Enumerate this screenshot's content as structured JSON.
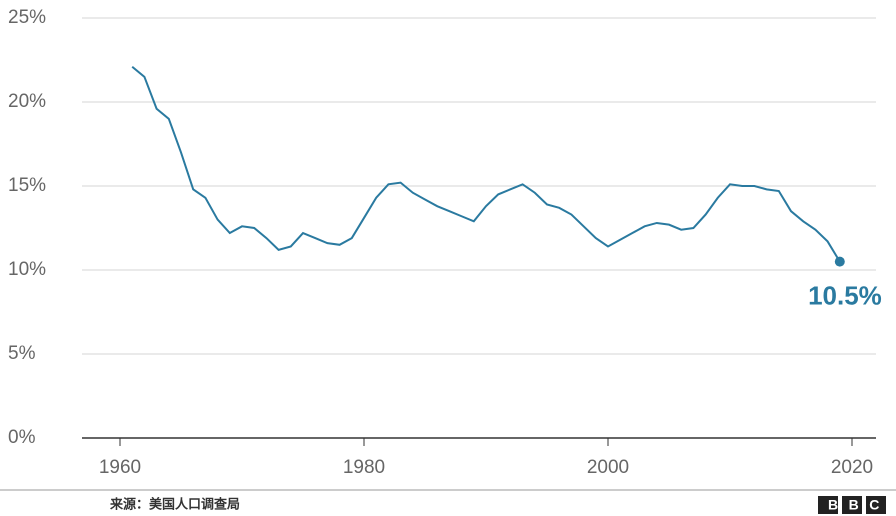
{
  "chart_data": {
    "type": "line",
    "x": [
      1961,
      1962,
      1963,
      1964,
      1965,
      1966,
      1967,
      1968,
      1969,
      1970,
      1971,
      1972,
      1973,
      1974,
      1975,
      1976,
      1977,
      1978,
      1979,
      1980,
      1981,
      1982,
      1983,
      1984,
      1985,
      1986,
      1987,
      1988,
      1989,
      1990,
      1991,
      1992,
      1993,
      1994,
      1995,
      1996,
      1997,
      1998,
      1999,
      2000,
      2001,
      2002,
      2003,
      2004,
      2005,
      2006,
      2007,
      2008,
      2009,
      2010,
      2011,
      2012,
      2013,
      2014,
      2015,
      2016,
      2017,
      2018,
      2019
    ],
    "series": [
      {
        "color": "#2a7aa0",
        "values": [
          22.1,
          21.5,
          19.6,
          19.0,
          17.0,
          14.8,
          14.3,
          13.0,
          12.2,
          12.6,
          12.5,
          11.9,
          11.2,
          11.4,
          12.2,
          11.9,
          11.6,
          11.5,
          11.9,
          13.1,
          14.3,
          15.1,
          15.2,
          14.6,
          14.2,
          13.8,
          13.5,
          13.2,
          12.9,
          13.8,
          14.5,
          14.8,
          15.1,
          14.6,
          13.9,
          13.7,
          13.3,
          12.6,
          11.9,
          11.4,
          11.8,
          12.2,
          12.6,
          12.8,
          12.7,
          12.4,
          12.5,
          13.3,
          14.3,
          15.1,
          15.0,
          15.0,
          14.8,
          14.7,
          13.5,
          12.9,
          12.4,
          11.7,
          10.5
        ],
        "value_labels": [
          null,
          null,
          null,
          null,
          null,
          null,
          null,
          null,
          null,
          null,
          null,
          null,
          null,
          null,
          null,
          null,
          null,
          null,
          null,
          null,
          null,
          null,
          null,
          null,
          null,
          null,
          null,
          null,
          null,
          null,
          null,
          null,
          null,
          null,
          null,
          null,
          null,
          null,
          null,
          null,
          null,
          null,
          null,
          null,
          null,
          null,
          null,
          null,
          null,
          null,
          null,
          null,
          null,
          null,
          null,
          null,
          null,
          null,
          "10.5%"
        ]
      }
    ],
    "xlim": [
      1960,
      2020
    ],
    "xticks": [
      1960,
      1980,
      2000,
      2020
    ],
    "ylim": [
      0,
      25
    ],
    "yticks": [
      {
        "value": 0,
        "label": "0%"
      },
      {
        "value": 5,
        "label": "5%"
      },
      {
        "value": 10,
        "label": "10%"
      },
      {
        "value": 15,
        "label": "15%"
      },
      {
        "value": 20,
        "label": "20%"
      },
      {
        "value": 25,
        "label": "25%"
      }
    ],
    "grid": true,
    "source": "来源：美国人口调查局",
    "logo": "BBC"
  }
}
